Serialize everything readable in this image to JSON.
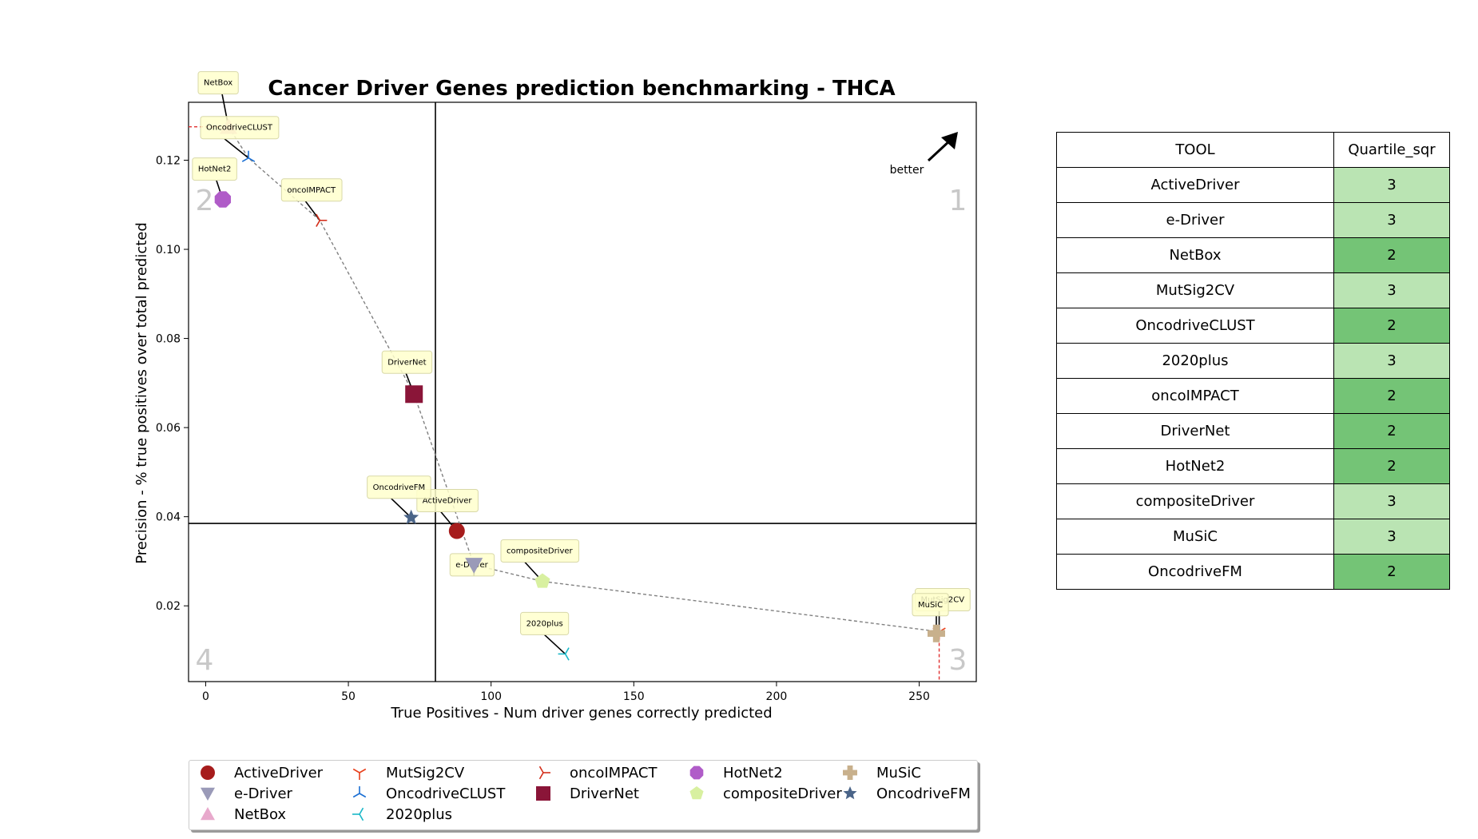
{
  "chart_data": {
    "type": "scatter",
    "title": "Cancer Driver Genes prediction benchmarking - THCA",
    "xlabel": "True Positives - Num driver genes correctly predicted",
    "ylabel": "Precision - % true positives over total predicted",
    "xlim": [
      -6,
      270
    ],
    "ylim": [
      0.003,
      0.133
    ],
    "x_ticks": [
      0,
      50,
      100,
      150,
      200,
      250
    ],
    "y_ticks": [
      0.02,
      0.04,
      0.06,
      0.08,
      0.1,
      0.12
    ],
    "x_tick_labels": [
      "0",
      "50",
      "100",
      "150",
      "200",
      "250"
    ],
    "y_tick_labels": [
      "0.02",
      "0.04",
      "0.06",
      "0.08",
      "0.10",
      "0.12"
    ],
    "quartile_lines": {
      "x": 80.5,
      "y": 0.0385
    },
    "quadrant_labels": [
      "1",
      "2",
      "3",
      "4"
    ],
    "better_label": "better",
    "series": [
      {
        "name": "ActiveDriver",
        "x": 88,
        "y": 0.0368,
        "marker": "circle",
        "color": "#a61c1c"
      },
      {
        "name": "e-Driver",
        "x": 94,
        "y": 0.0292,
        "marker": "triangle-down",
        "color": "#9a9ab8"
      },
      {
        "name": "NetBox",
        "x": 8,
        "y": 0.1275,
        "marker": "triangle-up",
        "color": "#e8a9cc"
      },
      {
        "name": "MutSig2CV",
        "x": 257,
        "y": 0.0142,
        "marker": "tri-down",
        "color": "#e8401c"
      },
      {
        "name": "OncodriveCLUST",
        "x": 15,
        "y": 0.1205,
        "marker": "tri-up",
        "color": "#1a6fd4"
      },
      {
        "name": "2020plus",
        "x": 126,
        "y": 0.0092,
        "marker": "tri-left",
        "color": "#1ab8c8"
      },
      {
        "name": "oncoIMPACT",
        "x": 40,
        "y": 0.1065,
        "marker": "tri-right",
        "color": "#d4301c"
      },
      {
        "name": "DriverNet",
        "x": 73,
        "y": 0.0675,
        "marker": "square",
        "color": "#8a1538"
      },
      {
        "name": "HotNet2",
        "x": 6,
        "y": 0.1112,
        "marker": "octagon",
        "color": "#b05cc8"
      },
      {
        "name": "compositeDriver",
        "x": 118,
        "y": 0.0255,
        "marker": "pentagon",
        "color": "#d8f0a0"
      },
      {
        "name": "MuSiC",
        "x": 256,
        "y": 0.0138,
        "marker": "plus",
        "color": "#c8b08c"
      },
      {
        "name": "OncodriveFM",
        "x": 72,
        "y": 0.0398,
        "marker": "star",
        "color": "#4a6488"
      }
    ],
    "pareto_frontier": [
      {
        "x": 8,
        "y": 0.1275
      },
      {
        "x": 15,
        "y": 0.1205
      },
      {
        "x": 40,
        "y": 0.1065
      },
      {
        "x": 73,
        "y": 0.0675
      },
      {
        "x": 94,
        "y": 0.0292
      },
      {
        "x": 118,
        "y": 0.0255
      },
      {
        "x": 257,
        "y": 0.0142
      }
    ],
    "legend_position": "bottom"
  },
  "table": {
    "headers": [
      "TOOL",
      "Quartile_sqr"
    ],
    "rows": [
      {
        "tool": "ActiveDriver",
        "q": "3"
      },
      {
        "tool": "e-Driver",
        "q": "3"
      },
      {
        "tool": "NetBox",
        "q": "2"
      },
      {
        "tool": "MutSig2CV",
        "q": "3"
      },
      {
        "tool": "OncodriveCLUST",
        "q": "2"
      },
      {
        "tool": "2020plus",
        "q": "3"
      },
      {
        "tool": "oncoIMPACT",
        "q": "2"
      },
      {
        "tool": "DriverNet",
        "q": "2"
      },
      {
        "tool": "HotNet2",
        "q": "2"
      },
      {
        "tool": "compositeDriver",
        "q": "3"
      },
      {
        "tool": "MuSiC",
        "q": "3"
      },
      {
        "tool": "OncodriveFM",
        "q": "2"
      }
    ],
    "quartile_colors": {
      "2": "#74c476",
      "3": "#bae4b3"
    }
  }
}
